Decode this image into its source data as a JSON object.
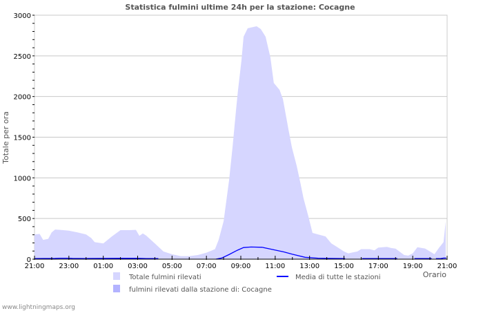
{
  "chart_data": {
    "type": "area",
    "title": "Statistica fulmini ultime 24h per la stazione: Cocagne",
    "xlabel": "Orario",
    "ylabel": "Totale per ora",
    "x_unit": "hours since 21:00",
    "xlim": [
      0,
      24
    ],
    "ylim": [
      0,
      3000
    ],
    "yticks": [
      0,
      500,
      1000,
      1500,
      2000,
      2500,
      3000
    ],
    "xtick_labels": [
      "21:00",
      "23:00",
      "01:00",
      "03:00",
      "05:00",
      "07:00",
      "09:00",
      "11:00",
      "13:00",
      "15:00",
      "17:00",
      "19:00",
      "21:00"
    ],
    "grid": true,
    "legend_position": "bottom",
    "series": [
      {
        "name": "Totale fulmini rilevati",
        "kind": "area",
        "color": "#d6d6ff",
        "points": [
          [
            0,
            303
          ],
          [
            0.3,
            310
          ],
          [
            0.5,
            237
          ],
          [
            0.8,
            250
          ],
          [
            1.0,
            330
          ],
          [
            1.2,
            365
          ],
          [
            1.5,
            360
          ],
          [
            2.0,
            351
          ],
          [
            2.5,
            329
          ],
          [
            3.0,
            303
          ],
          [
            3.3,
            260
          ],
          [
            3.5,
            209
          ],
          [
            4.0,
            194
          ],
          [
            4.5,
            280
          ],
          [
            5.0,
            357
          ],
          [
            5.5,
            357
          ],
          [
            5.9,
            360
          ],
          [
            6.1,
            286
          ],
          [
            6.3,
            317
          ],
          [
            6.5,
            289
          ],
          [
            7.0,
            194
          ],
          [
            7.5,
            94
          ],
          [
            8.0,
            60
          ],
          [
            8.5,
            37
          ],
          [
            9.0,
            37
          ],
          [
            9.5,
            51
          ],
          [
            10.0,
            80
          ],
          [
            10.5,
            123
          ],
          [
            10.71,
            238
          ],
          [
            11.0,
            467
          ],
          [
            11.32,
            977
          ],
          [
            11.52,
            1376
          ],
          [
            11.72,
            1827
          ],
          [
            11.84,
            2082
          ],
          [
            12.04,
            2448
          ],
          [
            12.16,
            2736
          ],
          [
            12.4,
            2839
          ],
          [
            12.92,
            2864
          ],
          [
            13.16,
            2830
          ],
          [
            13.44,
            2736
          ],
          [
            13.72,
            2481
          ],
          [
            13.92,
            2167
          ],
          [
            14.25,
            2082
          ],
          [
            14.45,
            1971
          ],
          [
            14.77,
            1598
          ],
          [
            14.97,
            1376
          ],
          [
            15.25,
            1147
          ],
          [
            15.45,
            952
          ],
          [
            15.65,
            748
          ],
          [
            15.93,
            527
          ],
          [
            16.17,
            323
          ],
          [
            16.93,
            280
          ],
          [
            17.26,
            195
          ],
          [
            17.6,
            150
          ],
          [
            18.0,
            94
          ],
          [
            18.25,
            71
          ],
          [
            18.78,
            94
          ],
          [
            19.0,
            123
          ],
          [
            19.5,
            123
          ],
          [
            19.77,
            109
          ],
          [
            20.0,
            143
          ],
          [
            20.5,
            151
          ],
          [
            20.75,
            137
          ],
          [
            21.0,
            129
          ],
          [
            21.5,
            51
          ],
          [
            21.74,
            43
          ],
          [
            22.0,
            71
          ],
          [
            22.27,
            146
          ],
          [
            22.72,
            131
          ],
          [
            23.0,
            94
          ],
          [
            23.26,
            60
          ],
          [
            23.52,
            137
          ],
          [
            23.79,
            209
          ],
          [
            23.92,
            466
          ]
        ]
      },
      {
        "name": "fulmini rilevati dalla stazione di: Cocagne",
        "kind": "area",
        "color": "#b3b3ff",
        "points": []
      },
      {
        "name": "Media di tutte le stazioni",
        "kind": "line",
        "color": "#0000ff",
        "segments": [
          [
            [
              0,
              8
            ],
            [
              1.2,
              9
            ],
            [
              1.5,
              12
            ],
            [
              2.0,
              12
            ],
            [
              2.2,
              9
            ],
            [
              3.0,
              8
            ],
            [
              5.0,
              10
            ],
            [
              6.0,
              10
            ],
            [
              6.5,
              8
            ],
            [
              7.2,
              8
            ]
          ],
          [
            [
              10.55,
              0
            ],
            [
              10.9,
              15
            ],
            [
              11.3,
              55
            ],
            [
              11.8,
              110
            ],
            [
              12.16,
              143
            ],
            [
              12.6,
              150
            ],
            [
              13.24,
              146
            ],
            [
              13.7,
              125
            ],
            [
              14.5,
              89
            ],
            [
              15.0,
              60
            ],
            [
              15.74,
              23
            ],
            [
              16.5,
              12
            ],
            [
              17.0,
              9
            ],
            [
              18.07,
              8
            ]
          ],
          [
            [
              19.05,
              8
            ],
            [
              21.1,
              8
            ]
          ],
          [
            [
              22.1,
              8
            ],
            [
              23.1,
              8
            ]
          ],
          [
            [
              23.35,
              8
            ],
            [
              23.6,
              6
            ],
            [
              23.8,
              14
            ],
            [
              23.95,
              14
            ]
          ]
        ]
      }
    ],
    "footer": "www.lightningmaps.org"
  }
}
